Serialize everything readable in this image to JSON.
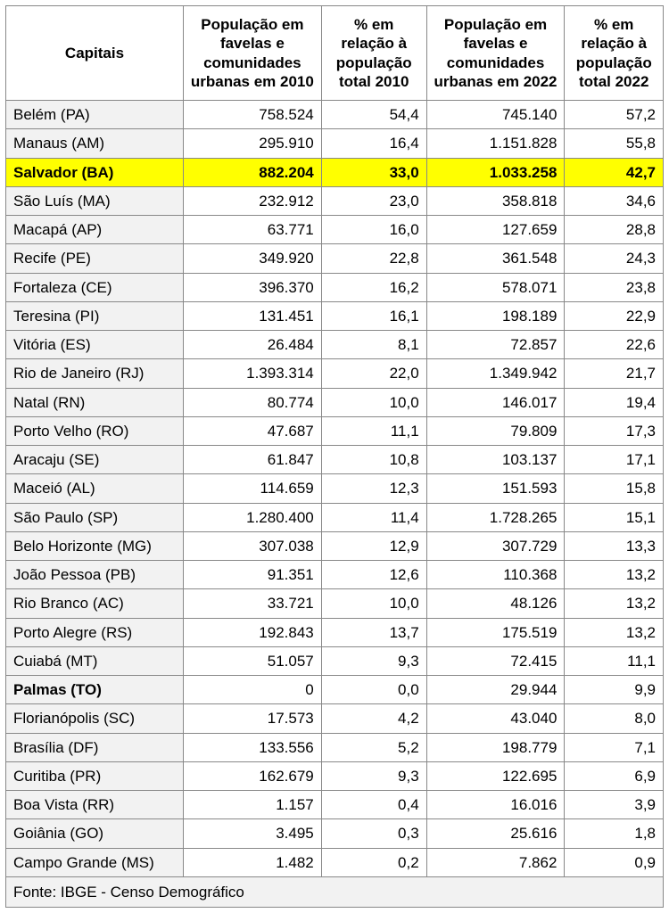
{
  "table": {
    "headers": [
      "Capitais",
      "População em favelas e comunidades urbanas em 2010",
      "% em relação à população total 2010",
      "População em favelas e comunidades urbanas em 2022",
      "% em relação à população total 2022"
    ],
    "footer": "Fonte: IBGE - Censo Demográfico",
    "highlight_color": "#ffff00",
    "alt_row_bg": "#f2f2f2",
    "border_color": "#888888",
    "rows": [
      {
        "city": "Belém (PA)",
        "pop2010": "758.524",
        "pct2010": "54,4",
        "pop2022": "745.140",
        "pct2022": "57,2",
        "highlight": false,
        "bold_city": false
      },
      {
        "city": "Manaus (AM)",
        "pop2010": "295.910",
        "pct2010": "16,4",
        "pop2022": "1.151.828",
        "pct2022": "55,8",
        "highlight": false,
        "bold_city": false
      },
      {
        "city": "Salvador (BA)",
        "pop2010": "882.204",
        "pct2010": "33,0",
        "pop2022": "1.033.258",
        "pct2022": "42,7",
        "highlight": true,
        "bold_city": true
      },
      {
        "city": "São Luís (MA)",
        "pop2010": "232.912",
        "pct2010": "23,0",
        "pop2022": "358.818",
        "pct2022": "34,6",
        "highlight": false,
        "bold_city": false
      },
      {
        "city": "Macapá (AP)",
        "pop2010": "63.771",
        "pct2010": "16,0",
        "pop2022": "127.659",
        "pct2022": "28,8",
        "highlight": false,
        "bold_city": false
      },
      {
        "city": "Recife (PE)",
        "pop2010": "349.920",
        "pct2010": "22,8",
        "pop2022": "361.548",
        "pct2022": "24,3",
        "highlight": false,
        "bold_city": false
      },
      {
        "city": "Fortaleza (CE)",
        "pop2010": "396.370",
        "pct2010": "16,2",
        "pop2022": "578.071",
        "pct2022": "23,8",
        "highlight": false,
        "bold_city": false
      },
      {
        "city": "Teresina (PI)",
        "pop2010": "131.451",
        "pct2010": "16,1",
        "pop2022": "198.189",
        "pct2022": "22,9",
        "highlight": false,
        "bold_city": false
      },
      {
        "city": "Vitória (ES)",
        "pop2010": "26.484",
        "pct2010": "8,1",
        "pop2022": "72.857",
        "pct2022": "22,6",
        "highlight": false,
        "bold_city": false
      },
      {
        "city": "Rio de Janeiro (RJ)",
        "pop2010": "1.393.314",
        "pct2010": "22,0",
        "pop2022": "1.349.942",
        "pct2022": "21,7",
        "highlight": false,
        "bold_city": false
      },
      {
        "city": "Natal (RN)",
        "pop2010": "80.774",
        "pct2010": "10,0",
        "pop2022": "146.017",
        "pct2022": "19,4",
        "highlight": false,
        "bold_city": false
      },
      {
        "city": "Porto Velho (RO)",
        "pop2010": "47.687",
        "pct2010": "11,1",
        "pop2022": "79.809",
        "pct2022": "17,3",
        "highlight": false,
        "bold_city": false
      },
      {
        "city": "Aracaju (SE)",
        "pop2010": "61.847",
        "pct2010": "10,8",
        "pop2022": "103.137",
        "pct2022": "17,1",
        "highlight": false,
        "bold_city": false
      },
      {
        "city": "Maceió (AL)",
        "pop2010": "114.659",
        "pct2010": "12,3",
        "pop2022": "151.593",
        "pct2022": "15,8",
        "highlight": false,
        "bold_city": false
      },
      {
        "city": "São Paulo (SP)",
        "pop2010": "1.280.400",
        "pct2010": "11,4",
        "pop2022": "1.728.265",
        "pct2022": "15,1",
        "highlight": false,
        "bold_city": false
      },
      {
        "city": "Belo Horizonte (MG)",
        "pop2010": "307.038",
        "pct2010": "12,9",
        "pop2022": "307.729",
        "pct2022": "13,3",
        "highlight": false,
        "bold_city": false
      },
      {
        "city": "João Pessoa (PB)",
        "pop2010": "91.351",
        "pct2010": "12,6",
        "pop2022": "110.368",
        "pct2022": "13,2",
        "highlight": false,
        "bold_city": false
      },
      {
        "city": "Rio Branco (AC)",
        "pop2010": "33.721",
        "pct2010": "10,0",
        "pop2022": "48.126",
        "pct2022": "13,2",
        "highlight": false,
        "bold_city": false
      },
      {
        "city": "Porto Alegre (RS)",
        "pop2010": "192.843",
        "pct2010": "13,7",
        "pop2022": "175.519",
        "pct2022": "13,2",
        "highlight": false,
        "bold_city": false
      },
      {
        "city": "Cuiabá (MT)",
        "pop2010": "51.057",
        "pct2010": "9,3",
        "pop2022": "72.415",
        "pct2022": "11,1",
        "highlight": false,
        "bold_city": false
      },
      {
        "city": "Palmas (TO)",
        "pop2010": "0",
        "pct2010": "0,0",
        "pop2022": "29.944",
        "pct2022": "9,9",
        "highlight": false,
        "bold_city": true
      },
      {
        "city": "Florianópolis (SC)",
        "pop2010": "17.573",
        "pct2010": "4,2",
        "pop2022": "43.040",
        "pct2022": "8,0",
        "highlight": false,
        "bold_city": false
      },
      {
        "city": "Brasília (DF)",
        "pop2010": "133.556",
        "pct2010": "5,2",
        "pop2022": "198.779",
        "pct2022": "7,1",
        "highlight": false,
        "bold_city": false
      },
      {
        "city": "Curitiba (PR)",
        "pop2010": "162.679",
        "pct2010": "9,3",
        "pop2022": "122.695",
        "pct2022": "6,9",
        "highlight": false,
        "bold_city": false
      },
      {
        "city": "Boa Vista (RR)",
        "pop2010": "1.157",
        "pct2010": "0,4",
        "pop2022": "16.016",
        "pct2022": "3,9",
        "highlight": false,
        "bold_city": false
      },
      {
        "city": "Goiânia (GO)",
        "pop2010": "3.495",
        "pct2010": "0,3",
        "pop2022": "25.616",
        "pct2022": "1,8",
        "highlight": false,
        "bold_city": false
      },
      {
        "city": "Campo Grande (MS)",
        "pop2010": "1.482",
        "pct2010": "0,2",
        "pop2022": "7.862",
        "pct2022": "0,9",
        "highlight": false,
        "bold_city": false
      }
    ]
  }
}
